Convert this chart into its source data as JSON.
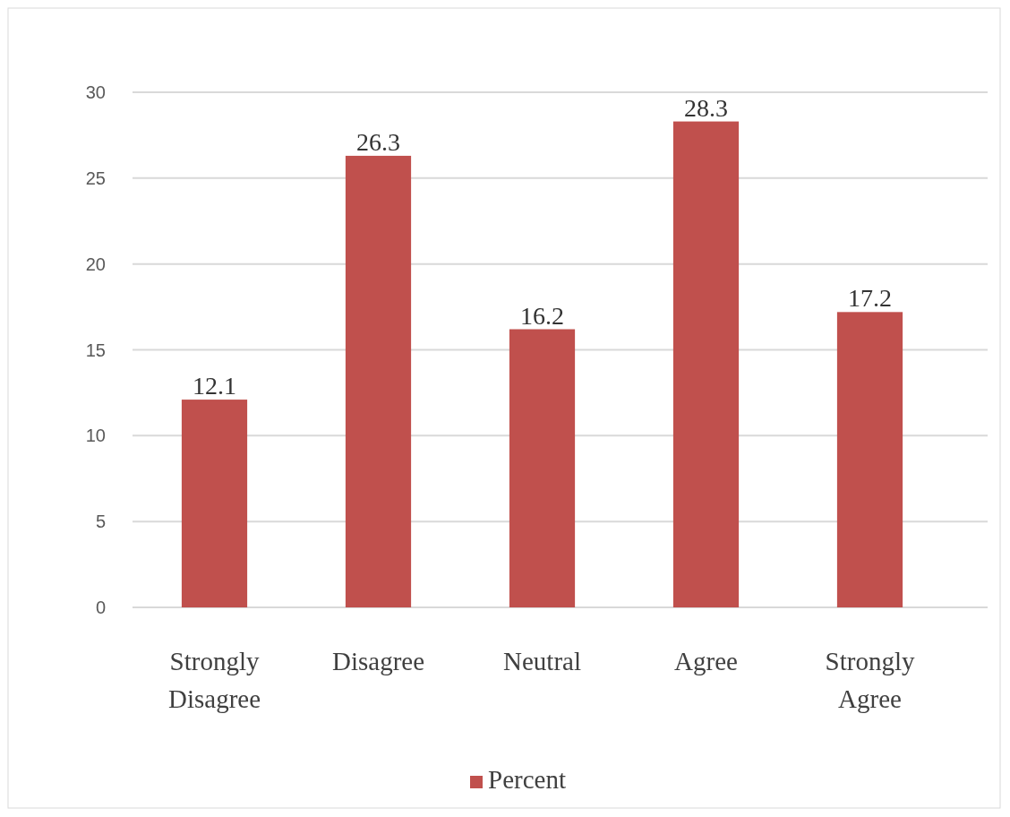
{
  "chart_data": {
    "type": "bar",
    "categories": [
      "Strongly Disagree",
      "Disagree",
      "Neutral",
      "Agree",
      "Strongly Agree"
    ],
    "series": [
      {
        "name": "Percent",
        "color": "#c0504d",
        "values": [
          12.1,
          26.3,
          16.2,
          28.3,
          17.2
        ]
      }
    ],
    "ylim": [
      0,
      30
    ],
    "yticks": [
      0,
      5,
      10,
      15,
      20,
      25,
      30
    ],
    "grid": "y",
    "data_labels": true,
    "legend": "bottom"
  }
}
